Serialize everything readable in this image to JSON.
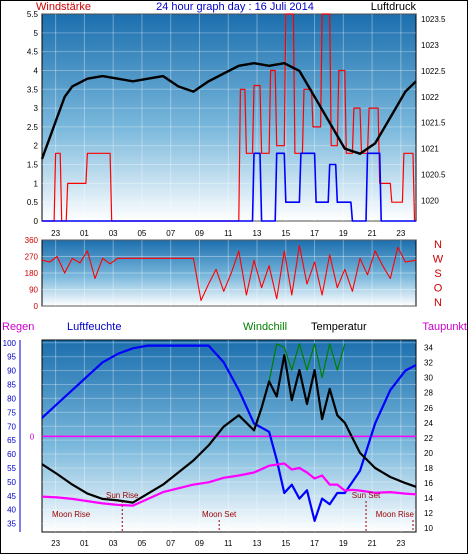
{
  "header": {
    "left_label": "Windstärke",
    "title": "24 hour graph day : 16 Juli 2014",
    "right_label": "Luftdruck"
  },
  "time_ticks": [
    "23",
    "01",
    "03",
    "05",
    "07",
    "09",
    "11",
    "13",
    "15",
    "17",
    "19",
    "21",
    "23"
  ],
  "colors": {
    "pressure": "#000000",
    "wind": "#ff0000",
    "gust": "#0000ff",
    "direction": "#ff0000",
    "humidity": "#0000ff",
    "temperature": "#000000",
    "windchill": "#008000",
    "dewpoint": "#ff00ff",
    "rain": "#ff00ff",
    "sun_moon": "#990000"
  },
  "chart_data": [
    {
      "type": "line",
      "name": "wind-pressure",
      "title": "24 hour graph day : 16 Juli 2014",
      "y_left_label": "Windstärke",
      "y_right_label": "Luftdruck",
      "y_left_ticks": [
        "0",
        "0.5",
        "1",
        "1.5",
        "2",
        "2.5",
        "3",
        "3.5",
        "4",
        "4.5",
        "5",
        "5.5"
      ],
      "y_left_range": [
        0,
        5.5
      ],
      "y_right_ticks": [
        "1023.5",
        "1023",
        "1022.5",
        "1022",
        "1021.5",
        "1021",
        "1020.5",
        "1020"
      ],
      "y_right_range": [
        1019.6,
        1023.6
      ],
      "x_ticks": [
        "23",
        "01",
        "03",
        "05",
        "07",
        "09",
        "11",
        "13",
        "15",
        "17",
        "19",
        "21",
        "23"
      ],
      "x_range": [
        0,
        24.7
      ],
      "pressure": {
        "x": [
          0,
          0.5,
          1,
          1.5,
          2,
          3,
          4,
          5,
          6,
          7,
          8,
          9,
          10,
          11,
          12,
          13,
          14,
          15,
          16,
          17,
          18,
          19,
          20,
          21,
          22,
          23,
          24,
          24.7
        ],
        "y": [
          1020.8,
          1021.2,
          1021.6,
          1022.0,
          1022.2,
          1022.35,
          1022.4,
          1022.35,
          1022.3,
          1022.35,
          1022.4,
          1022.2,
          1022.1,
          1022.3,
          1022.45,
          1022.6,
          1022.65,
          1022.6,
          1022.65,
          1022.5,
          1022.0,
          1021.5,
          1021.0,
          1020.9,
          1021.1,
          1021.6,
          1022.1,
          1022.3
        ]
      },
      "wind": {
        "x": [
          0,
          0.8,
          0.9,
          1.2,
          1.3,
          1.6,
          1.7,
          2.9,
          3.0,
          4.5,
          4.6,
          13.0,
          13.1,
          13.4,
          13.5,
          13.9,
          14.0,
          14.4,
          14.5,
          15.0,
          15.1,
          15.4,
          15.5,
          16.0,
          16.1,
          16.6,
          16.7,
          17.2,
          17.3,
          17.8,
          17.9,
          18.4,
          18.5,
          19.0,
          19.1,
          19.5,
          19.6,
          20.0,
          20.1,
          20.5,
          20.6,
          21.0,
          21.1,
          21.5,
          21.6,
          22.2,
          22.3,
          23.0,
          23.1,
          23.8,
          23.9,
          24.5,
          24.6,
          24.7
        ],
        "y": [
          0,
          0,
          1.8,
          1.8,
          0,
          0,
          1,
          1,
          1.8,
          1.8,
          0,
          0,
          3.5,
          3.5,
          1.8,
          1.8,
          3.6,
          3.6,
          1.8,
          1.8,
          4,
          4,
          2,
          2,
          5.5,
          5.5,
          1.8,
          1.8,
          3.5,
          3.5,
          2.5,
          2.5,
          5.5,
          5.5,
          2,
          2,
          4,
          4,
          1.8,
          1.8,
          3,
          3,
          1.8,
          1.8,
          3,
          3,
          1,
          1,
          0.5,
          0.5,
          1.8,
          1.8,
          0,
          0
        ]
      },
      "gust": {
        "x": [
          0,
          13.9,
          14.0,
          14.4,
          14.5,
          15.4,
          15.5,
          16.0,
          16.1,
          17.0,
          17.1,
          18.0,
          18.1,
          18.9,
          19.0,
          19.4,
          19.5,
          20.4,
          20.5,
          21.4,
          21.5,
          22.3,
          22.4,
          24.7
        ],
        "y": [
          0,
          0,
          1.8,
          1.8,
          0,
          0,
          1.8,
          1.8,
          0.5,
          0.5,
          1.8,
          1.8,
          0.5,
          0.5,
          1.5,
          1.5,
          0.5,
          0.5,
          0,
          0,
          1.8,
          1.8,
          0,
          0
        ]
      }
    },
    {
      "type": "line",
      "name": "wind-direction",
      "y_ticks": [
        "360",
        "270",
        "180",
        "90",
        "0"
      ],
      "y_range": [
        0,
        360
      ],
      "direction_labels": [
        "N",
        "W",
        "S",
        "O",
        "N"
      ],
      "x_range": [
        0,
        24.7
      ],
      "direction": {
        "x": [
          0,
          0.5,
          1.0,
          1.5,
          2.0,
          2.5,
          3.0,
          3.5,
          4.0,
          4.5,
          5.0,
          6.0,
          7.0,
          8.0,
          9.0,
          10.0,
          10.5,
          11.0,
          11.5,
          12.0,
          12.5,
          13.0,
          13.5,
          14.0,
          14.5,
          15.0,
          15.5,
          16.0,
          16.5,
          17.0,
          17.5,
          18.0,
          18.5,
          19.0,
          19.5,
          20.0,
          20.5,
          21.0,
          21.5,
          22.0,
          22.5,
          23.0,
          23.5,
          24.0,
          24.7
        ],
        "y": [
          250,
          240,
          270,
          180,
          260,
          235,
          300,
          150,
          260,
          230,
          260,
          260,
          260,
          260,
          260,
          260,
          30,
          120,
          200,
          80,
          180,
          300,
          60,
          250,
          100,
          220,
          40,
          300,
          60,
          330,
          120,
          240,
          60,
          280,
          100,
          200,
          80,
          260,
          170,
          300,
          220,
          150,
          320,
          240,
          250
        ]
      }
    },
    {
      "type": "line",
      "name": "humidity-temperature",
      "left_axis_labels": [
        "Regen",
        "Luftfeuchte"
      ],
      "right_axis_labels": [
        "Windchill",
        "Temperatur",
        "Taupunkt"
      ],
      "y_humidity_ticks": [
        "100",
        "95",
        "90",
        "85",
        "80",
        "75",
        "70",
        "65",
        "60",
        "55",
        "50",
        "45",
        "40",
        "35"
      ],
      "y_humidity_range": [
        32,
        101
      ],
      "y_temp_ticks": [
        "34",
        "32",
        "30",
        "28",
        "26",
        "24",
        "22",
        "20",
        "18",
        "16",
        "14",
        "12",
        "10"
      ],
      "y_temp_range": [
        9.5,
        35
      ],
      "rain_axis_value": "0",
      "x_range": [
        0,
        24.7
      ],
      "humidity": {
        "x": [
          0,
          1,
          2,
          3,
          4,
          5,
          6,
          7,
          8,
          9,
          10,
          11,
          12,
          13,
          14,
          15,
          15.5,
          16,
          16.5,
          17,
          17.5,
          18,
          18.5,
          19,
          19.5,
          20,
          21,
          22,
          23,
          24,
          24.7
        ],
        "y": [
          73,
          78,
          83,
          88,
          93,
          96,
          98,
          99,
          99,
          99,
          99,
          99,
          93,
          83,
          71,
          68,
          58,
          46,
          49,
          44,
          47,
          36,
          44,
          42,
          46,
          46,
          54,
          71,
          83,
          90,
          92
        ]
      },
      "temperature": {
        "x": [
          0,
          1,
          2,
          3,
          4,
          5,
          6,
          7,
          8,
          9,
          10,
          11,
          12,
          13,
          14,
          14.5,
          15,
          15.5,
          16,
          16.5,
          17,
          17.5,
          18,
          18.5,
          19,
          19.5,
          20,
          20.5,
          21,
          22,
          23,
          24,
          24.7
        ],
        "y": [
          18.5,
          17.2,
          15.8,
          14.6,
          13.9,
          13.7,
          13.4,
          14.6,
          15.8,
          17.4,
          19.0,
          21.0,
          23.5,
          25.0,
          23.0,
          26.0,
          29.5,
          27.5,
          33.0,
          27.0,
          31.0,
          26.5,
          31.0,
          24.5,
          28.5,
          25.0,
          24.0,
          22.0,
          20.0,
          18.0,
          16.8,
          16.0,
          15.5
        ]
      },
      "windchill": {
        "x": [
          15.0,
          15.5,
          16.0,
          16.5,
          17.0,
          17.5,
          18.0,
          18.5,
          19.0,
          19.5,
          20.0
        ],
        "y": [
          29.5,
          34.5,
          34.0,
          31.0,
          34.5,
          31.0,
          34.5,
          30.0,
          34.5,
          31.0,
          34.5
        ]
      },
      "dewpoint": {
        "x": [
          0,
          1,
          2,
          3,
          4,
          5,
          6,
          7,
          8,
          9,
          10,
          11,
          12,
          13,
          14,
          15,
          16,
          16.5,
          17,
          17.5,
          18,
          18.5,
          19,
          19.5,
          20,
          20.5,
          21,
          22,
          23,
          24,
          24.7
        ],
        "y": [
          14.2,
          14.1,
          13.9,
          13.6,
          13.3,
          13.1,
          13.0,
          13.9,
          14.8,
          15.3,
          15.8,
          16.1,
          16.7,
          17.0,
          17.4,
          18.3,
          18.6,
          17.8,
          18.0,
          17.4,
          16.6,
          17.0,
          15.8,
          15.8,
          15.0,
          15.1,
          15.0,
          14.7,
          14.8,
          14.6,
          14.5
        ]
      },
      "rain": {
        "x": [
          0,
          24.7
        ],
        "y": [
          0,
          0
        ]
      },
      "events": [
        {
          "label": "Sun Rise",
          "x": 5.3
        },
        {
          "label": "Moon Set",
          "x": 11.7
        },
        {
          "label": "Sun Set",
          "x": 21.4
        },
        {
          "label": "Moon Rise",
          "x": 24.5
        },
        {
          "label": "Moon Rise",
          "x": -1.2
        }
      ]
    }
  ]
}
